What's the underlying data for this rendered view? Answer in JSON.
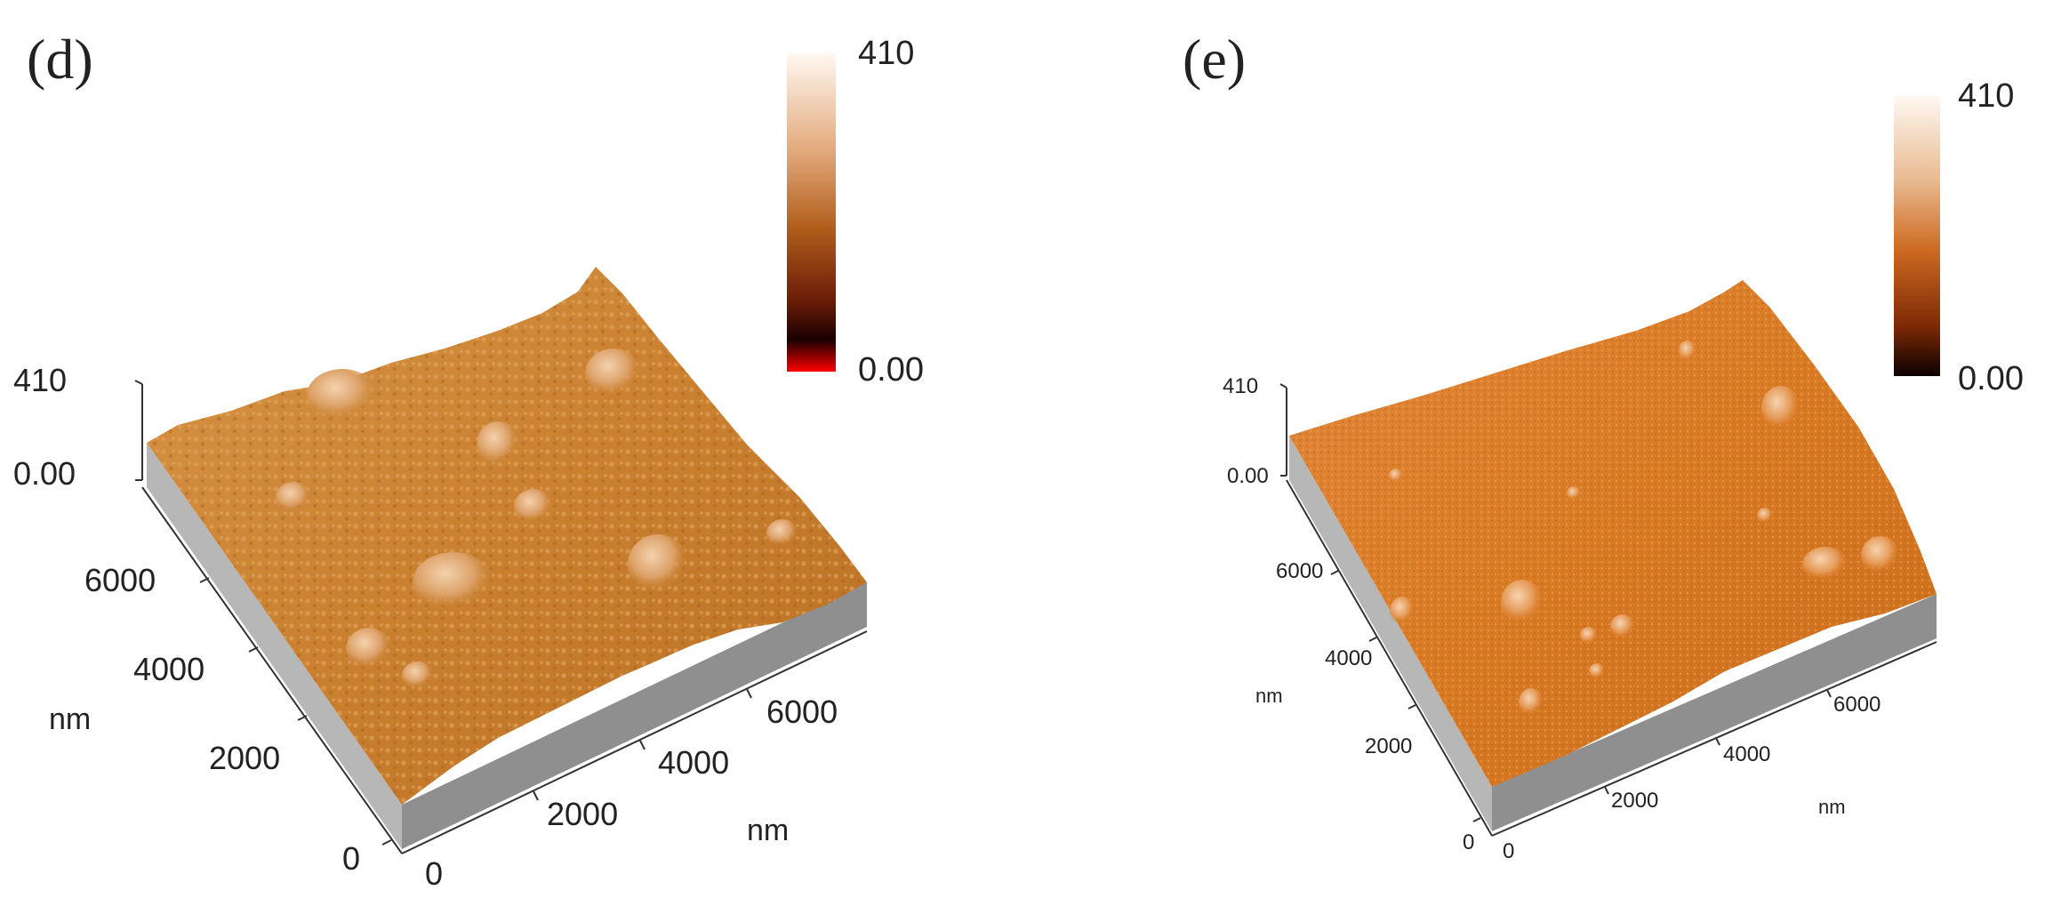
{
  "panels": [
    {
      "id": "d",
      "label": "(d)",
      "colorbar": {
        "max": "410",
        "min": "0.00",
        "stops": [
          "#fff8f2",
          "#e3ab7e",
          "#b15e1b",
          "#6a1b08",
          "#1a0000",
          "#ff0000"
        ]
      },
      "z_axis": {
        "top": "410",
        "bottom": "0.00"
      },
      "left_axis": {
        "ticks": [
          "6000",
          "4000",
          "2000",
          "0"
        ],
        "unit": "nm"
      },
      "right_axis": {
        "ticks": [
          "0",
          "2000",
          "4000",
          "6000"
        ],
        "unit": "nm"
      },
      "surface_color": "#c9802f",
      "side_color": "#9b9b9b"
    },
    {
      "id": "e",
      "label": "(e)",
      "colorbar": {
        "max": "410",
        "min": "0.00",
        "stops": [
          "#fff8f2",
          "#e8ba90",
          "#cd6a22",
          "#7e2a06",
          "#0b0000"
        ]
      },
      "z_axis": {
        "top": "410",
        "bottom": "0.00"
      },
      "left_axis": {
        "ticks": [
          "6000",
          "4000",
          "2000",
          "0"
        ],
        "unit": "nm"
      },
      "right_axis": {
        "ticks": [
          "0",
          "2000",
          "4000",
          "6000"
        ],
        "unit": "nm"
      },
      "surface_color": "#d97a24",
      "side_color": "#9b9b9b"
    }
  ]
}
